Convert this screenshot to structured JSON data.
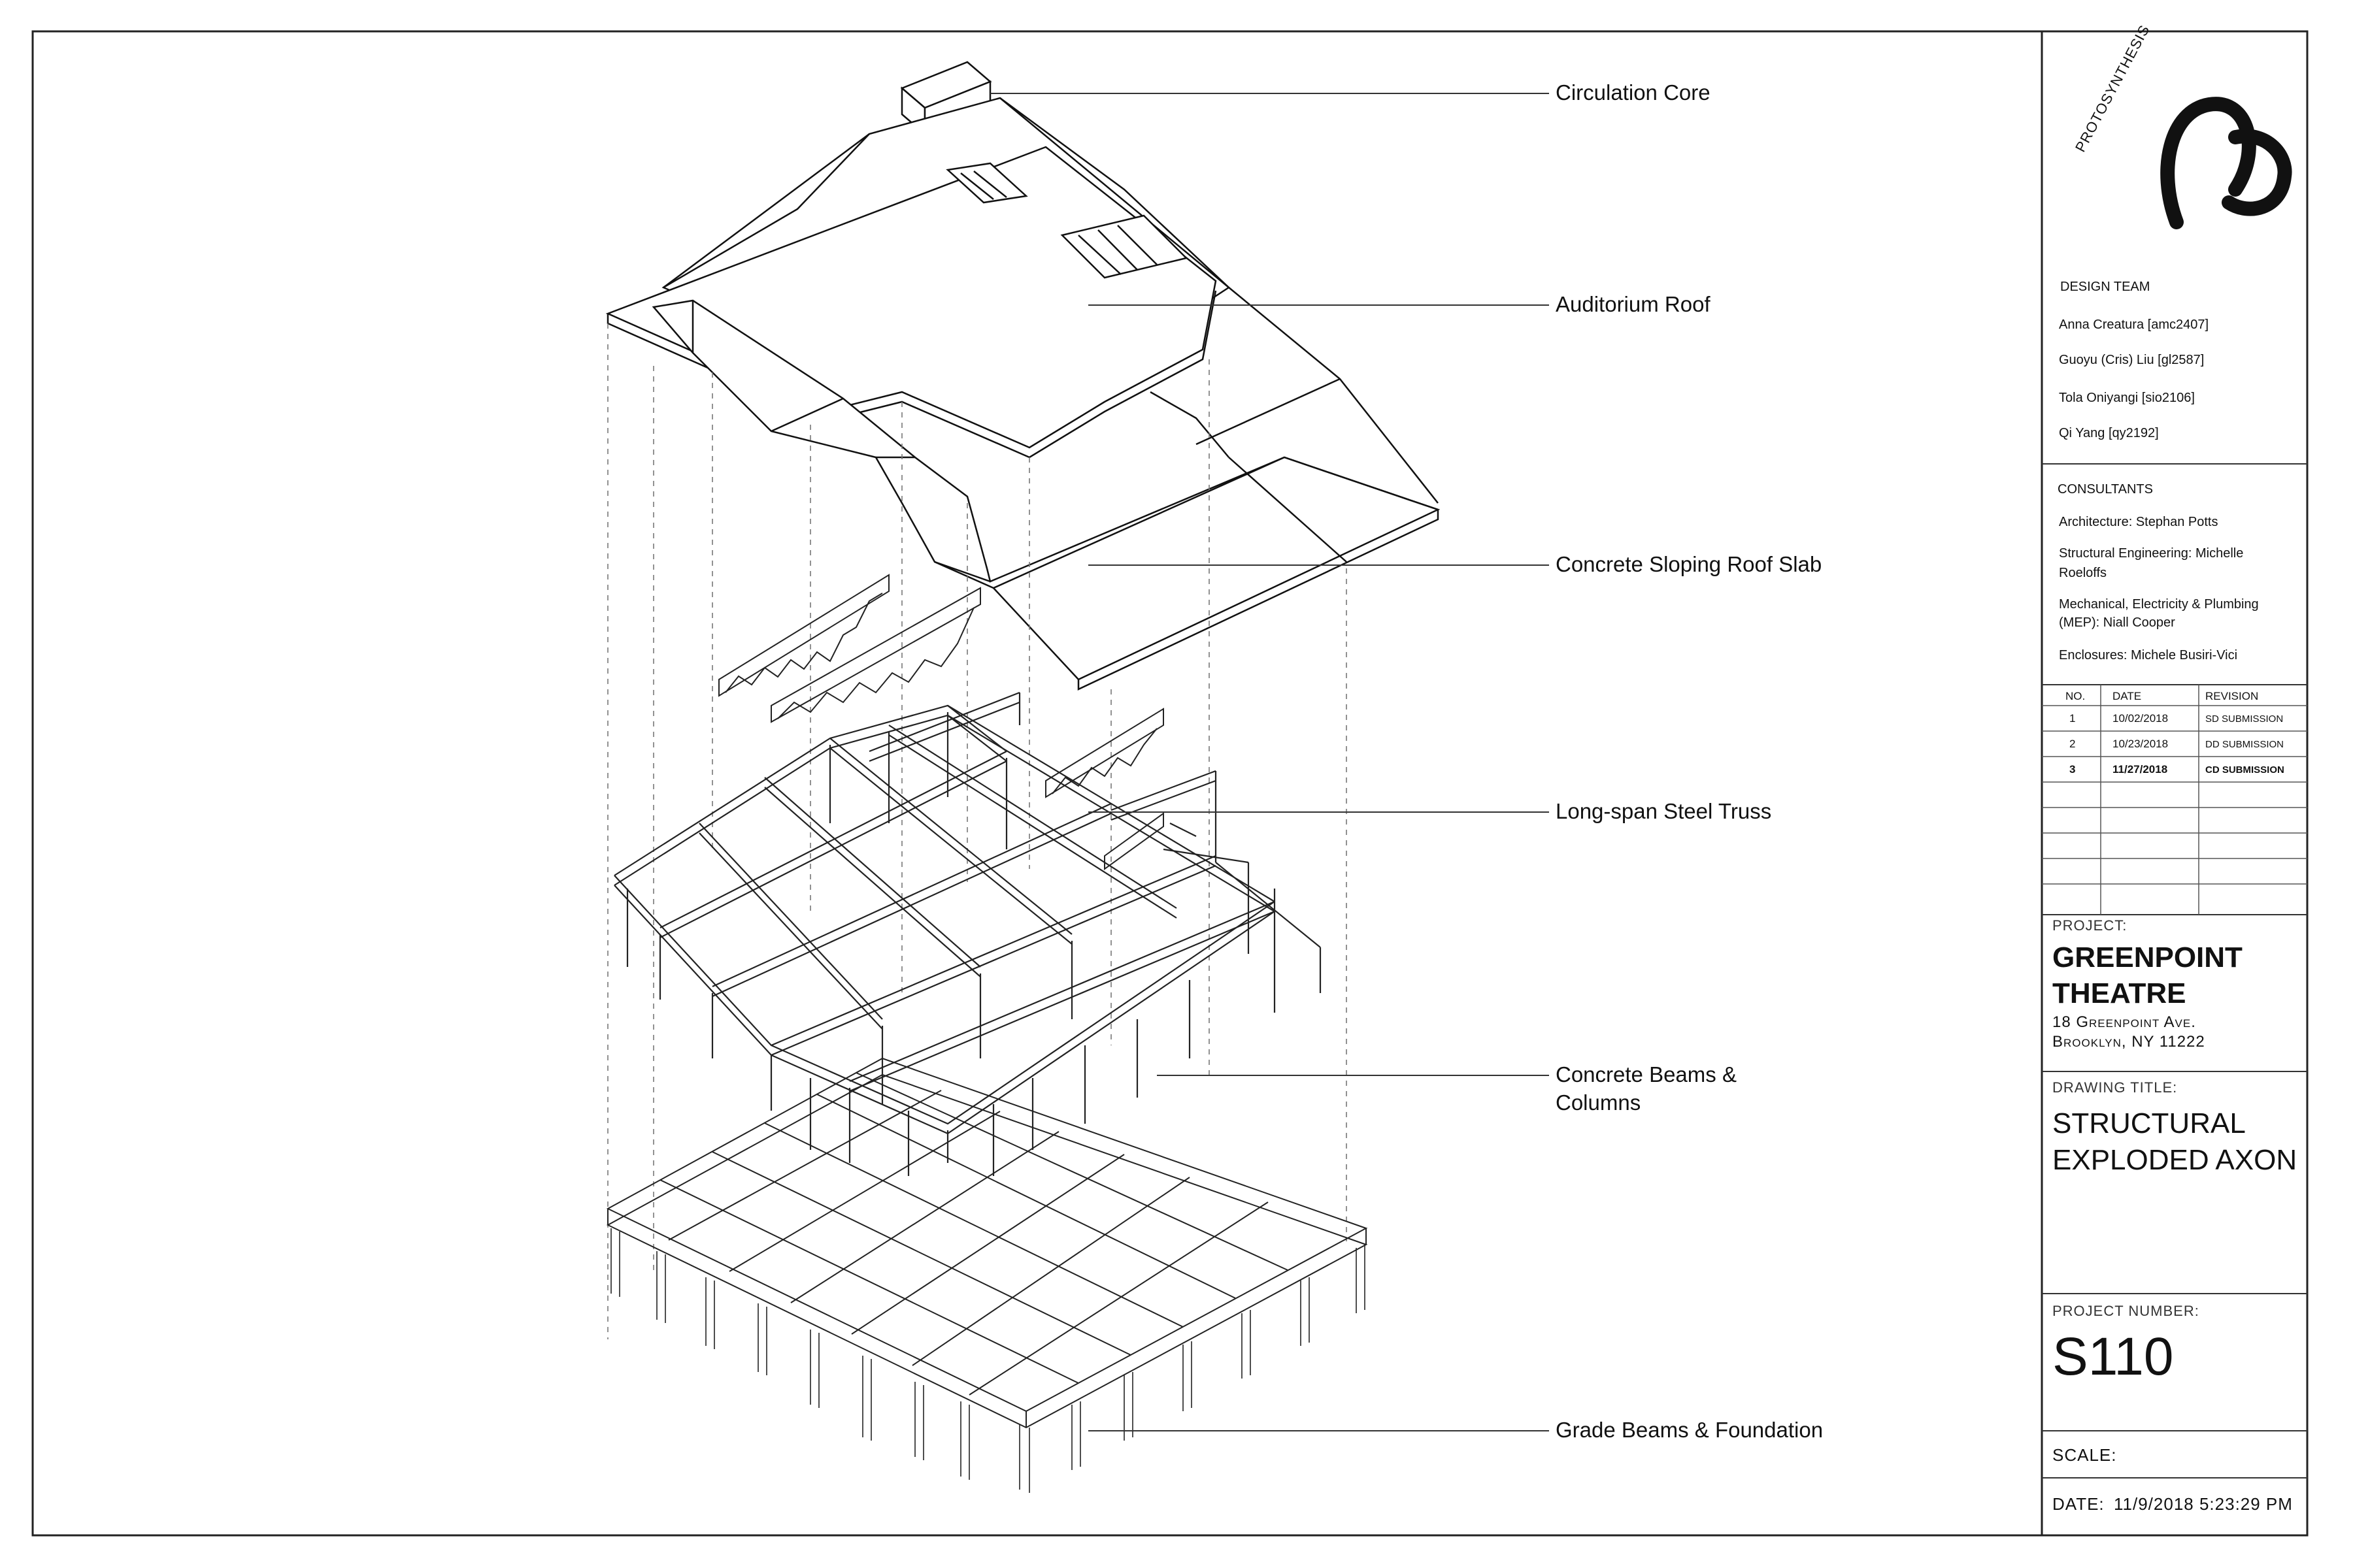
{
  "callouts": [
    {
      "id": "circulation-core",
      "text": "Circulation Core"
    },
    {
      "id": "auditorium-roof",
      "text": "Auditorium Roof"
    },
    {
      "id": "sloping-roof-slab",
      "text": "Concrete Sloping Roof Slab"
    },
    {
      "id": "steel-truss",
      "text": "Long-span Steel Truss"
    },
    {
      "id": "beams-columns",
      "text": [
        "Concrete Beams &",
        "Columns"
      ]
    },
    {
      "id": "grade-beams",
      "text": "Grade Beams & Foundation"
    }
  ],
  "title_block": {
    "logo_text": "PROTOSYNTHESIS",
    "design_team": {
      "heading": "DESIGN TEAM",
      "members": [
        "Anna Creatura [amc2407]",
        "Guoyu (Cris) Liu [gl2587]",
        "Tola Oniyangi [sio2106]",
        "Qi Yang [qy2192]"
      ]
    },
    "consultants": {
      "heading": "CONSULTANTS",
      "items": [
        [
          "Architecture: Stephan Potts"
        ],
        [
          "Structural Engineering: Michelle",
          "Roeloffs"
        ],
        [
          "Mechanical, Electricity & Plumbing",
          "(MEP): Niall Cooper"
        ],
        [
          "Enclosures: Michele Busiri-Vici"
        ]
      ]
    },
    "revisions": {
      "headers": [
        "NO.",
        "DATE",
        "REVISION"
      ],
      "rows": [
        [
          "1",
          "10/02/2018",
          "SD SUBMISSION"
        ],
        [
          "2",
          "10/23/2018",
          "DD SUBMISSION"
        ],
        [
          "3",
          "11/27/2018",
          "CD SUBMISSION"
        ]
      ]
    },
    "project_label": "PROJECT:",
    "project_name": [
      "GREENPOINT",
      "THEATRE"
    ],
    "project_address": [
      "18 Greenpoint Ave.",
      "Brooklyn, NY 11222"
    ],
    "drawing_title_label": "DRAWING TITLE:",
    "drawing_title": [
      "STRUCTURAL",
      "EXPLODED AXON"
    ],
    "project_number_label": "PROJECT NUMBER:",
    "project_number": "S110",
    "scale_label": "SCALE:",
    "date_label": "DATE:",
    "date_value": "11/9/2018 5:23:29 PM"
  }
}
